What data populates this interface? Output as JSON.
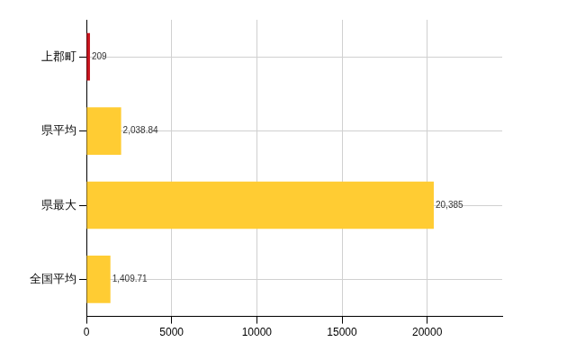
{
  "chart_data": {
    "type": "bar",
    "orientation": "horizontal",
    "categories": [
      "上郡町",
      "県平均",
      "県最大",
      "全国平均"
    ],
    "values": [
      209,
      2038.84,
      20385,
      1409.71
    ],
    "value_labels": [
      "209",
      "2,038.84",
      "20,385",
      "1,409.71"
    ],
    "colors": [
      "#c8141e",
      "#ffcc33",
      "#ffcc33",
      "#ffcc33"
    ],
    "xlim": [
      0,
      24400
    ],
    "xticks": [
      0,
      5000,
      10000,
      15000,
      20000
    ],
    "grid": true,
    "data_labels": true
  }
}
